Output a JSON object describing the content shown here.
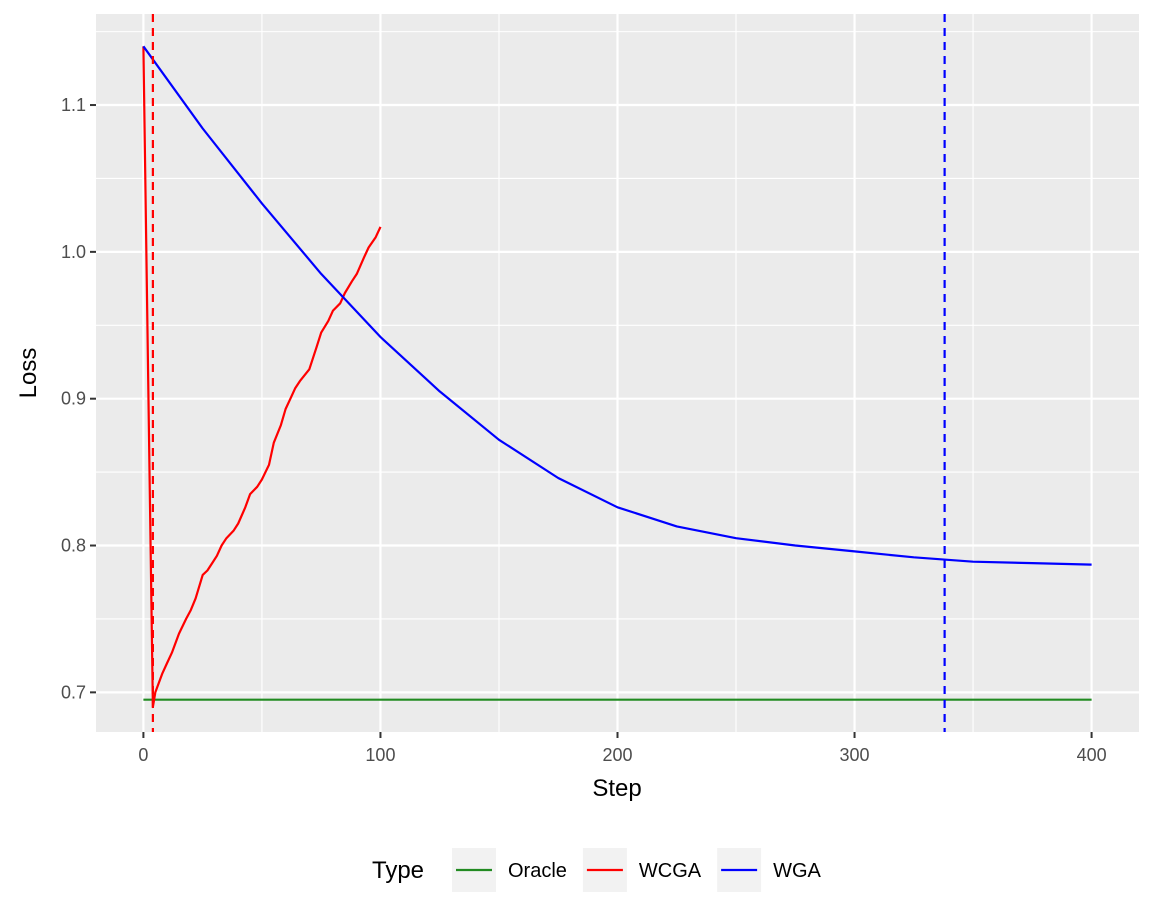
{
  "chart_data": {
    "type": "line",
    "title": "",
    "xlabel": "Step",
    "ylabel": "Loss",
    "xlim": [
      -20,
      420
    ],
    "ylim": [
      0.673,
      1.162
    ],
    "x_ticks": [
      0,
      100,
      200,
      300,
      400
    ],
    "y_ticks": [
      0.7,
      0.8,
      0.9,
      1.0,
      1.1
    ],
    "x_tick_labels": [
      "0",
      "100",
      "200",
      "300",
      "400"
    ],
    "y_tick_labels": [
      "0.7",
      "0.8",
      "0.9",
      "1.0",
      "1.1"
    ],
    "grid": true,
    "legend_position": "bottom",
    "legend_title": "Type",
    "series": [
      {
        "name": "Oracle",
        "color": "#228B22",
        "x": [
          0,
          400
        ],
        "y": [
          0.695,
          0.695
        ]
      },
      {
        "name": "WCGA",
        "color": "#FF0000",
        "x": [
          0,
          4,
          5,
          8,
          10,
          12,
          15,
          18,
          20,
          22,
          25,
          27,
          29,
          31,
          33,
          35,
          38,
          40,
          43,
          45,
          48,
          50,
          53,
          55,
          58,
          60,
          62,
          64,
          66,
          68,
          70,
          73,
          75,
          78,
          80,
          83,
          85,
          88,
          90,
          93,
          95,
          98,
          100
        ],
        "y": [
          1.14,
          0.69,
          0.7,
          0.713,
          0.72,
          0.727,
          0.74,
          0.75,
          0.756,
          0.764,
          0.78,
          0.783,
          0.788,
          0.793,
          0.8,
          0.805,
          0.81,
          0.815,
          0.826,
          0.835,
          0.84,
          0.845,
          0.855,
          0.87,
          0.882,
          0.893,
          0.9,
          0.907,
          0.912,
          0.916,
          0.92,
          0.935,
          0.945,
          0.953,
          0.96,
          0.965,
          0.972,
          0.98,
          0.985,
          0.996,
          1.003,
          1.01,
          1.017
        ]
      },
      {
        "name": "WGA",
        "color": "#0000FF",
        "x": [
          0,
          25,
          50,
          75,
          100,
          125,
          150,
          175,
          200,
          225,
          250,
          275,
          300,
          325,
          350,
          375,
          400
        ],
        "y": [
          1.14,
          1.084,
          1.033,
          0.985,
          0.942,
          0.905,
          0.872,
          0.846,
          0.826,
          0.813,
          0.805,
          0.8,
          0.796,
          0.792,
          0.789,
          0.788,
          0.787
        ]
      }
    ],
    "vlines": [
      {
        "x": 4,
        "color": "#FF0000",
        "style": "dashed"
      },
      {
        "x": 338,
        "color": "#0000FF",
        "style": "dashed"
      }
    ]
  }
}
